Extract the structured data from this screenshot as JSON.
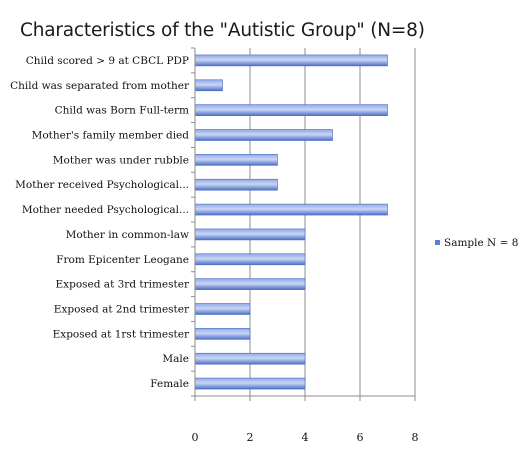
{
  "chart_data": {
    "type": "bar",
    "orientation": "horizontal",
    "title": "Characteristics of the  \"Autistic Group\" (N=8)",
    "categories": [
      "Child scored > 9 at CBCL PDP",
      "Child was separated from mother",
      "Child was Born Full-term",
      "Mother's family member died",
      "Mother was under rubble",
      "Mother received Psychological...",
      "Mother needed Psychological...",
      "Mother in common-law",
      "From Epicenter Leogane",
      "Exposed at 3rd trimester",
      "Exposed at 2nd trimester",
      "Exposed at 1rst trimester",
      "Male",
      "Female"
    ],
    "series": [
      {
        "name": "Sample N = 8",
        "values": [
          7,
          1,
          7,
          5,
          3,
          3,
          7,
          4,
          4,
          4,
          2,
          2,
          4,
          4
        ],
        "color": "#5b7fd1"
      }
    ],
    "xlim": [
      0,
      8
    ],
    "xticks": [
      "0",
      "2",
      "4",
      "6",
      "8"
    ],
    "grid": "vertical",
    "legend_position": "right"
  }
}
